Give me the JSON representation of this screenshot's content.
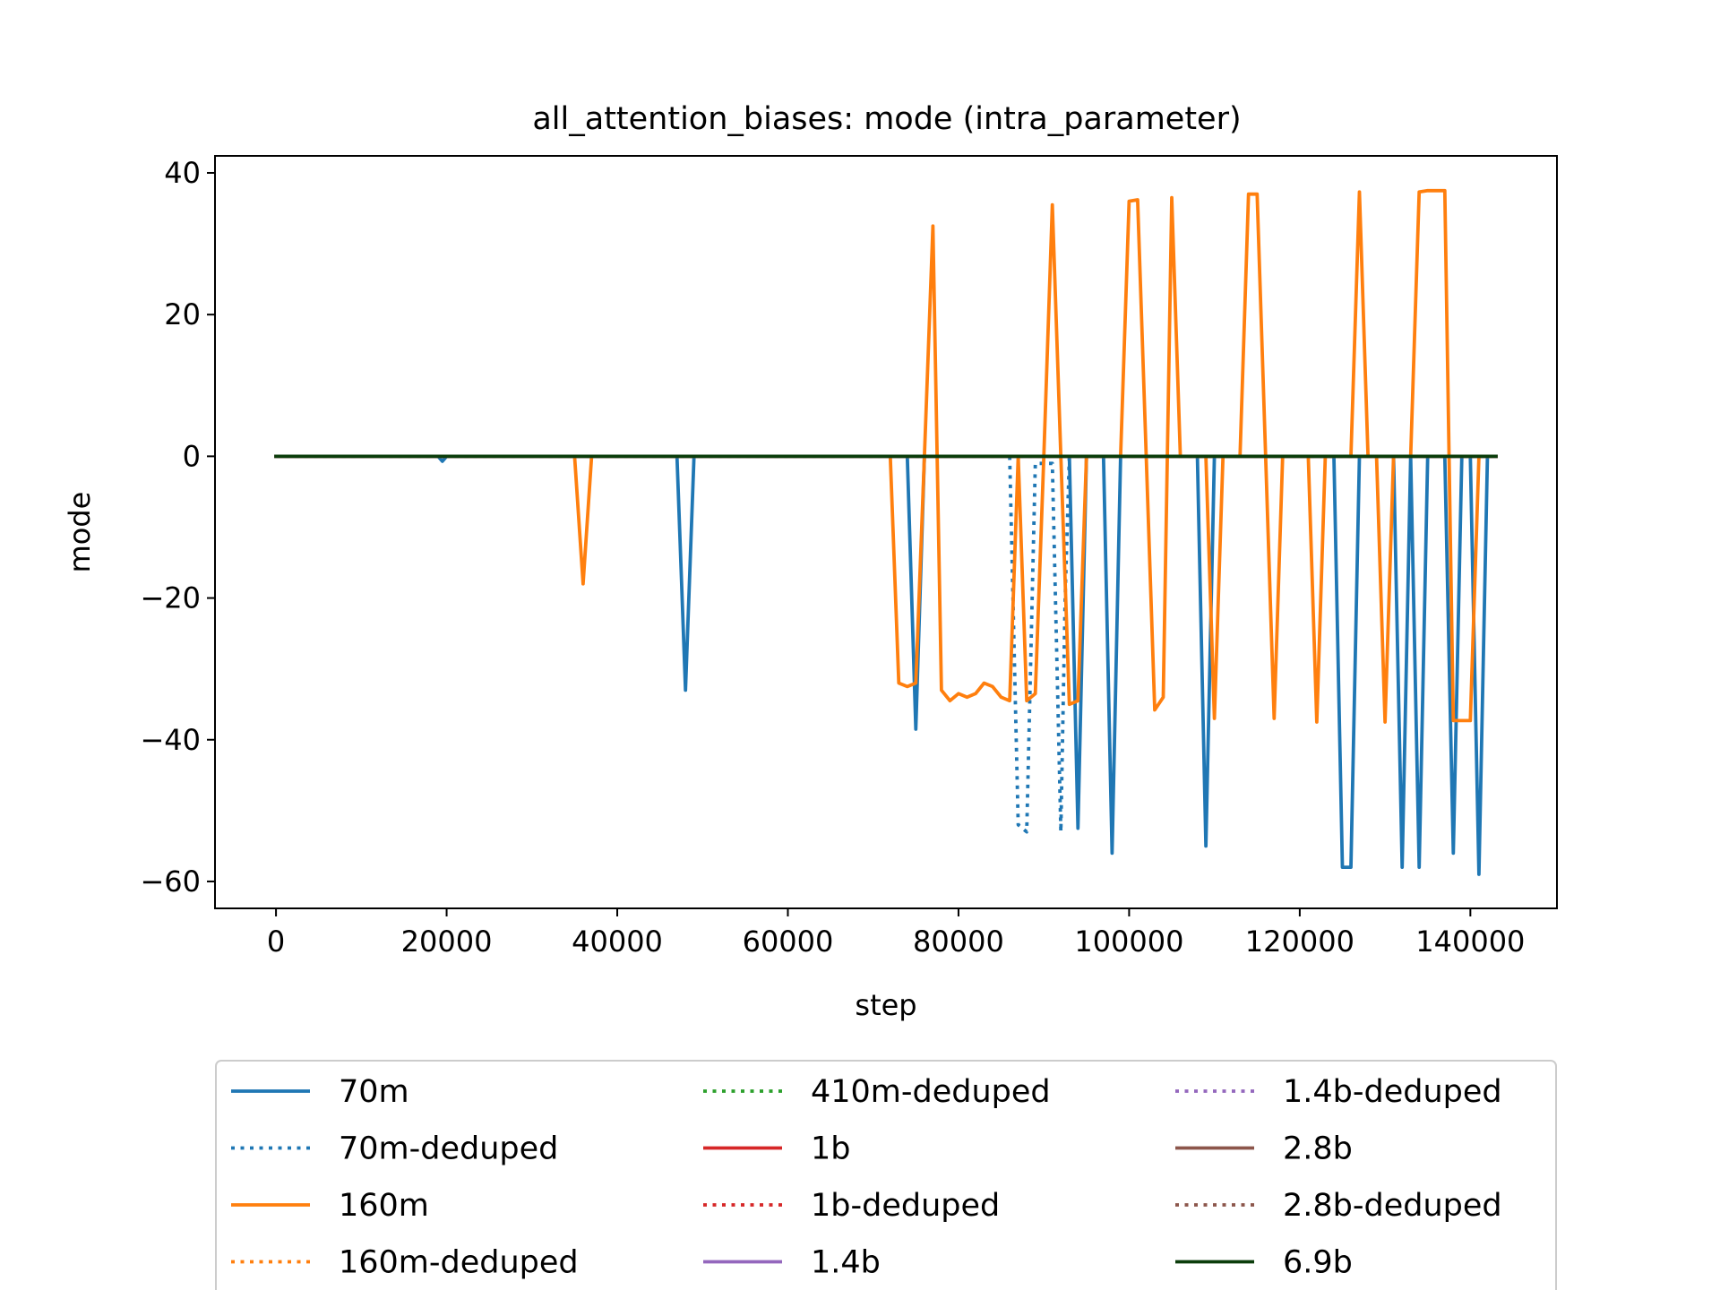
{
  "chart_data": {
    "type": "line",
    "title": "all_attention_biases: mode (intra_parameter)",
    "xlabel": "step",
    "ylabel": "mode",
    "xlim": [
      -7150,
      150150
    ],
    "ylim": [
      -63.8,
      42.4
    ],
    "xticks": [
      0,
      20000,
      40000,
      60000,
      80000,
      100000,
      120000,
      140000
    ],
    "yticks": [
      -60,
      -40,
      -20,
      0,
      20,
      40
    ],
    "grid": false,
    "legend_position": "bottom",
    "legend_columns": 3,
    "series": [
      {
        "name": "70m",
        "color": "#1f77b4",
        "dash": "solid",
        "x": [
          0,
          19000,
          19500,
          20000,
          46000,
          47000,
          48000,
          49000,
          73000,
          74000,
          75000,
          76000,
          92000,
          93000,
          94000,
          95000,
          97000,
          98000,
          99000,
          108000,
          109000,
          110000,
          124000,
          125000,
          126000,
          127000,
          131000,
          132000,
          133000,
          134000,
          135000,
          136000,
          137000,
          138000,
          139000,
          140000,
          141000,
          142000,
          143000
        ],
        "y": [
          0,
          0,
          -0.7,
          0,
          0,
          0,
          -33,
          0,
          0,
          0,
          -38.5,
          0,
          0,
          0,
          -52.5,
          0,
          0,
          -56,
          0,
          0,
          -55,
          0,
          0,
          -58,
          -58,
          0,
          0,
          -58,
          0,
          -58,
          0,
          0,
          0,
          -56,
          0,
          0,
          -59,
          0,
          0
        ]
      },
      {
        "name": "70m-deduped",
        "color": "#1f77b4",
        "dash": "dotted",
        "x": [
          0,
          85500,
          86000,
          87000,
          88000,
          89000,
          90000,
          91000,
          92000,
          92500,
          93000,
          143000
        ],
        "y": [
          0,
          0,
          0,
          -52,
          -53,
          -1,
          -1,
          -1,
          -53,
          -20,
          0,
          0
        ]
      },
      {
        "name": "160m",
        "color": "#ff7f0e",
        "dash": "solid",
        "x": [
          0,
          35000,
          36000,
          37000,
          71000,
          72000,
          73000,
          74000,
          75000,
          76000,
          77000,
          78000,
          79000,
          80000,
          81000,
          82000,
          83000,
          84000,
          85000,
          86000,
          87000,
          88000,
          89000,
          90000,
          91000,
          92000,
          93000,
          94000,
          95000,
          96000,
          97000,
          98000,
          99000,
          100000,
          101000,
          102000,
          103000,
          104000,
          105000,
          106000,
          109000,
          110000,
          111000,
          113000,
          114000,
          115000,
          116000,
          117000,
          118000,
          121000,
          122000,
          123000,
          126000,
          127000,
          128000,
          129000,
          130000,
          131000,
          132000,
          133000,
          134000,
          135000,
          136000,
          137000,
          138000,
          139000,
          140000,
          141000,
          142000,
          143000
        ],
        "y": [
          0,
          0,
          -18,
          0,
          0,
          0,
          -32,
          -32.5,
          -32,
          0,
          32.5,
          -33,
          -34.5,
          -33.5,
          -34,
          -33.5,
          -32,
          -32.5,
          -34,
          -34.5,
          0,
          -34.5,
          -33.5,
          0,
          35.5,
          0,
          -35,
          -34.5,
          0,
          0,
          0,
          0,
          0,
          36,
          36.2,
          0,
          -35.8,
          -34,
          36.5,
          0,
          0,
          -37,
          0,
          0,
          37,
          37,
          0,
          -37,
          0,
          0,
          -37.5,
          0,
          0,
          37.3,
          0,
          0,
          -37.5,
          0,
          0,
          0,
          37.3,
          37.5,
          37.5,
          37.5,
          -37.3,
          -37.3,
          -37.3,
          0,
          0,
          0
        ]
      },
      {
        "name": "160m-deduped",
        "color": "#ff7f0e",
        "dash": "dotted",
        "x": [
          0,
          143000
        ],
        "y": [
          0,
          0
        ]
      },
      {
        "name": "410m-deduped",
        "color": "#2ca02c",
        "dash": "dotted",
        "x": [
          0,
          143000
        ],
        "y": [
          0,
          0
        ]
      },
      {
        "name": "1b",
        "color": "#d62728",
        "dash": "solid",
        "x": [
          0,
          143000
        ],
        "y": [
          0,
          0
        ]
      },
      {
        "name": "1b-deduped",
        "color": "#d62728",
        "dash": "dotted",
        "x": [
          0,
          143000
        ],
        "y": [
          0,
          0
        ]
      },
      {
        "name": "1.4b",
        "color": "#9467bd",
        "dash": "solid",
        "x": [
          0,
          143000
        ],
        "y": [
          0,
          0
        ]
      },
      {
        "name": "1.4b-deduped",
        "color": "#9467bd",
        "dash": "dotted",
        "x": [
          0,
          143000
        ],
        "y": [
          0,
          0
        ]
      },
      {
        "name": "2.8b",
        "color": "#8c564b",
        "dash": "solid",
        "x": [
          0,
          143000
        ],
        "y": [
          0,
          0
        ]
      },
      {
        "name": "2.8b-deduped",
        "color": "#8c564b",
        "dash": "dotted",
        "x": [
          0,
          143000
        ],
        "y": [
          0,
          0
        ]
      },
      {
        "name": "6.9b",
        "color": "#0b3d0b",
        "dash": "solid",
        "x": [
          0,
          143000
        ],
        "y": [
          0,
          0
        ]
      }
    ]
  }
}
